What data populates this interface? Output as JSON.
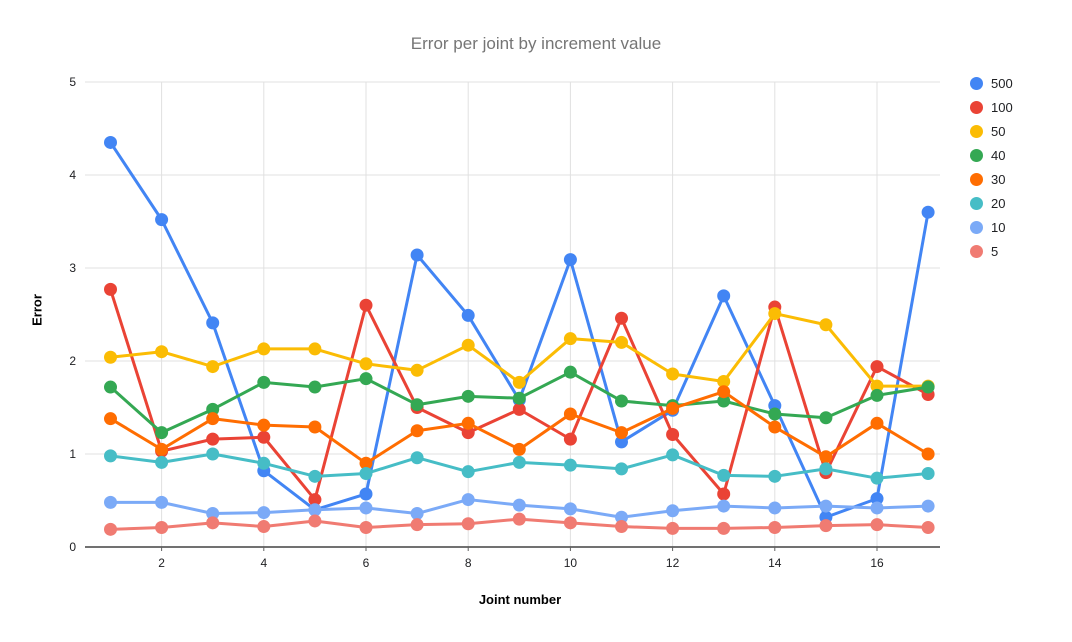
{
  "chart_data": {
    "type": "line",
    "title": "Error per joint by increment value",
    "xlabel": "Joint number",
    "ylabel": "Error",
    "x": [
      1,
      2,
      3,
      4,
      5,
      6,
      7,
      8,
      9,
      10,
      11,
      12,
      13,
      14,
      15,
      16,
      17
    ],
    "xticks": [
      2,
      4,
      6,
      8,
      10,
      12,
      14,
      16
    ],
    "yticks": [
      0,
      1,
      2,
      3,
      4,
      5
    ],
    "ylim": [
      0,
      5
    ],
    "grid": true,
    "legend_position": "right",
    "series": [
      {
        "name": "500",
        "color": "#4285F4",
        "values": [
          4.35,
          3.52,
          2.41,
          0.82,
          0.4,
          0.57,
          3.14,
          2.49,
          1.58,
          3.09,
          1.13,
          1.47,
          2.7,
          1.52,
          0.32,
          0.52,
          3.6
        ]
      },
      {
        "name": "100",
        "color": "#EA4335",
        "values": [
          2.77,
          1.03,
          1.16,
          1.18,
          0.51,
          2.6,
          1.5,
          1.23,
          1.48,
          1.16,
          2.46,
          1.21,
          0.57,
          2.58,
          0.8,
          1.94,
          1.64
        ]
      },
      {
        "name": "50",
        "color": "#FBBC04",
        "values": [
          2.04,
          2.1,
          1.94,
          2.13,
          2.13,
          1.97,
          1.9,
          2.17,
          1.77,
          2.24,
          2.2,
          1.86,
          1.78,
          2.51,
          2.39,
          1.73,
          1.73
        ]
      },
      {
        "name": "40",
        "color": "#34A853",
        "values": [
          1.72,
          1.23,
          1.48,
          1.77,
          1.72,
          1.81,
          1.53,
          1.62,
          1.6,
          1.88,
          1.57,
          1.52,
          1.57,
          1.43,
          1.39,
          1.63,
          1.72
        ]
      },
      {
        "name": "30",
        "color": "#FF6D01",
        "values": [
          1.38,
          1.05,
          1.38,
          1.31,
          1.29,
          0.9,
          1.25,
          1.33,
          1.05,
          1.43,
          1.23,
          1.49,
          1.67,
          1.29,
          0.97,
          1.33,
          1.0
        ]
      },
      {
        "name": "20",
        "color": "#46BDC6",
        "values": [
          0.98,
          0.91,
          1.0,
          0.9,
          0.76,
          0.79,
          0.96,
          0.81,
          0.91,
          0.88,
          0.84,
          0.99,
          0.77,
          0.76,
          0.84,
          0.74,
          0.79
        ]
      },
      {
        "name": "10",
        "color": "#7BAAF7",
        "values": [
          0.48,
          0.48,
          0.36,
          0.37,
          0.4,
          0.42,
          0.36,
          0.51,
          0.45,
          0.41,
          0.32,
          0.39,
          0.44,
          0.42,
          0.44,
          0.42,
          0.44
        ]
      },
      {
        "name": "5",
        "color": "#F07B72",
        "values": [
          0.19,
          0.21,
          0.26,
          0.22,
          0.28,
          0.21,
          0.24,
          0.25,
          0.3,
          0.26,
          0.22,
          0.2,
          0.2,
          0.21,
          0.23,
          0.24,
          0.21
        ]
      }
    ]
  }
}
